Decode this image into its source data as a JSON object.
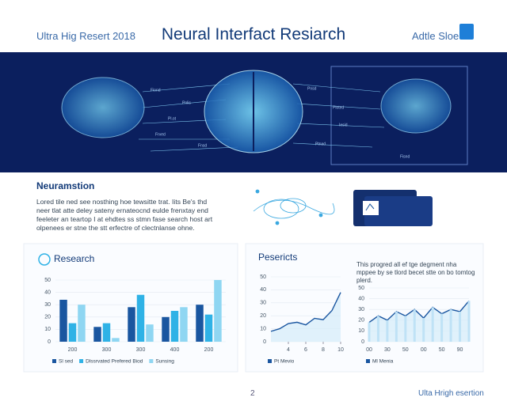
{
  "header": {
    "left": "Ultra Hig Resert 2018",
    "title": "Neural Interfact Resiarch",
    "right": "Adtle Sloe"
  },
  "banner": {
    "labels": [
      "Fiond",
      "Pnlis",
      "Pl.ot",
      "Frved",
      "Fnsd",
      "Pnsd",
      "Ploted",
      "Iesid",
      "Ptnad",
      "Fisnd"
    ]
  },
  "intro": {
    "title": "Neuramstion",
    "lines": [
      "Lored tile ned see nosthing hoe tewsitte trat. Iits Be's thd",
      "neer tlat atte deley sateny ernateocnd eulde frenxtay end",
      "feeleter an teartop I at ehdtes ss stmn fase search host art",
      "olpenees er stne the stt erfectre of clectnlanse ohne."
    ]
  },
  "footer": {
    "text": "Ulta Hrigh esertion",
    "page": "2"
  },
  "chart_data": [
    {
      "type": "bar",
      "title": "Research",
      "categories": [
        "200",
        "300",
        "300",
        "400",
        "200"
      ],
      "series": [
        {
          "name": "Sl sed",
          "color": "#1a56a0",
          "values": [
            34,
            12,
            28,
            20,
            30
          ]
        },
        {
          "name": "Dlssrvated Prefered Biod",
          "color": "#2fb2e6",
          "values": [
            15,
            15,
            38,
            25,
            22
          ]
        },
        {
          "name": "Sunsing",
          "color": "#8fd6f2",
          "values": [
            30,
            3,
            14,
            28,
            50
          ]
        }
      ],
      "ylim": [
        0,
        50
      ],
      "yticks": [
        0,
        10,
        20,
        30,
        40,
        50
      ],
      "grid": true
    },
    {
      "type": "line",
      "title": "Pesericts",
      "x": [
        2,
        3,
        4,
        5,
        6,
        7,
        8,
        9,
        10
      ],
      "series": [
        {
          "name": "Pt Mevio",
          "color": "#1a56a0",
          "values": [
            8,
            10,
            14,
            15,
            13,
            18,
            17,
            24,
            38
          ]
        }
      ],
      "xlim": [
        2,
        10
      ],
      "xticks": [
        4,
        6,
        8,
        10
      ],
      "ylim": [
        0,
        50
      ],
      "yticks": [
        0,
        10,
        20,
        30,
        40,
        50
      ],
      "grid": true
    },
    {
      "type": "area",
      "annotation": "This progred all ef tge degment nha mppee by se tlord becet stte on bo tomtog plerd.",
      "categories": [
        "00",
        null,
        "30",
        null,
        "50",
        null,
        "00",
        null,
        "50",
        null,
        "90",
        null
      ],
      "series": [
        {
          "name": "Ml Menia",
          "color": "#1a56a0",
          "values": [
            18,
            24,
            20,
            28,
            24,
            30,
            22,
            32,
            26,
            30,
            28,
            38
          ]
        }
      ],
      "ylim": [
        0,
        50
      ],
      "yticks": [
        0,
        10,
        20,
        30,
        40,
        50
      ],
      "grid": true
    }
  ]
}
